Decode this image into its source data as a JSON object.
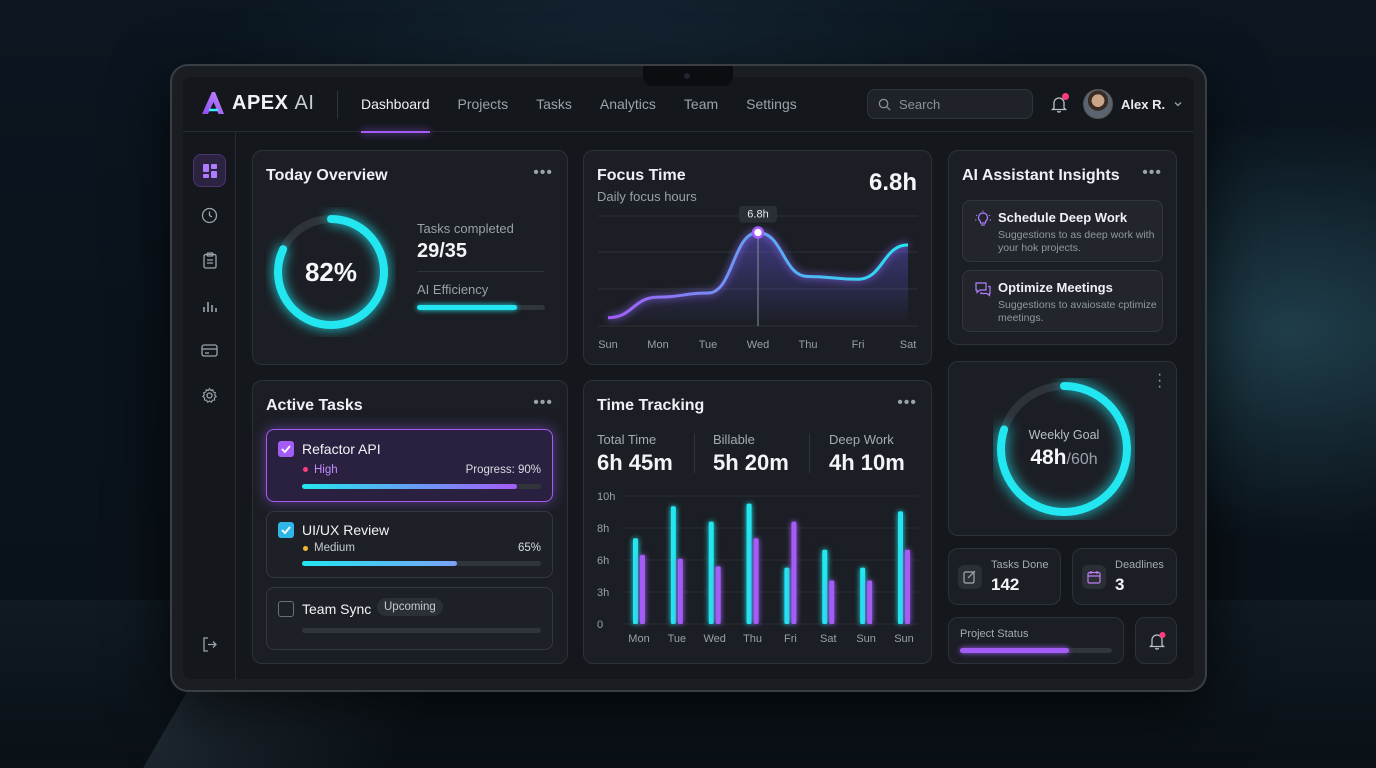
{
  "app": {
    "brand": "APEX",
    "brand_suffix": "AI"
  },
  "nav": {
    "items": [
      "Dashboard",
      "Projects",
      "Tasks",
      "Analytics",
      "Team",
      "Settings"
    ],
    "active": "Dashboard"
  },
  "search": {
    "placeholder": "Search"
  },
  "user": {
    "name": "Alex R."
  },
  "colors": {
    "accent_purple": "#a45cf7",
    "accent_cyan": "#22e6f0",
    "high": "#ff3d7a",
    "medium": "#f5b731"
  },
  "today_overview": {
    "title": "Today Overview",
    "percent_label": "82%",
    "percent": 0.82,
    "tasks_completed_label": "Tasks completed",
    "tasks_completed_value": "29/35",
    "ai_efficiency_label": "AI Efficiency",
    "ai_efficiency": 0.78
  },
  "focus_time": {
    "title": "Focus Time",
    "subtitle": "Daily focus hours",
    "total": "6.8h",
    "tooltip": "6.8h",
    "chart_data": {
      "type": "area",
      "categories": [
        "Sun",
        "Mon",
        "Tue",
        "Wed",
        "Thu",
        "Fri",
        "Sat"
      ],
      "values": [
        0.6,
        2.1,
        2.4,
        6.8,
        3.6,
        3.4,
        5.9
      ],
      "ylim": [
        0,
        8
      ],
      "highlight_index": 3
    }
  },
  "ai_insights": {
    "title": "AI Assistant Insights",
    "items": [
      {
        "title": "Schedule Deep Work",
        "desc": "Suggestions to as deep work with your hok projects.",
        "icon": "lightbulb-icon"
      },
      {
        "title": "Optimize Meetings",
        "desc": "Suggestions to avaiosate cptimize meetings.",
        "icon": "chat-icon"
      }
    ]
  },
  "active_tasks": {
    "title": "Active Tasks",
    "items": [
      {
        "name": "Refactor API",
        "priority": "High",
        "progress_label": "Progress: 90%",
        "progress": 0.9,
        "checked": true
      },
      {
        "name": "UI/UX Review",
        "priority": "Medium",
        "progress_label": "65%",
        "progress": 0.65,
        "checked": true
      },
      {
        "name": "Team Sync",
        "badge": "Upcoming",
        "progress": 0,
        "checked": false
      }
    ]
  },
  "time_tracking": {
    "title": "Time Tracking",
    "stats": [
      {
        "label": "Total Time",
        "value": "6h 45m"
      },
      {
        "label": "Billable",
        "value": "5h 20m"
      },
      {
        "label": "Deep Work",
        "value": "4h 10m"
      }
    ],
    "y_ticks": [
      "10h",
      "8h",
      "6h",
      "3h",
      "0"
    ],
    "chart_data": {
      "type": "bar",
      "categories": [
        "Mon",
        "Tue",
        "Wed",
        "Thu",
        "Fri",
        "Sat",
        "Sun",
        "Sun"
      ],
      "ylim": [
        0,
        10
      ],
      "series": [
        {
          "values": [
            6.7,
            9.2,
            8.0,
            9.4,
            4.4,
            5.8,
            4.4,
            8.8
          ]
        },
        {
          "values": [
            5.4,
            5.1,
            4.5,
            6.7,
            8.0,
            3.4,
            3.4,
            5.8
          ]
        }
      ]
    }
  },
  "weekly_goal": {
    "label": "Weekly Goal",
    "value": "48h",
    "target": "/60h",
    "progress": 0.8
  },
  "tasks_done": {
    "label": "Tasks Done",
    "value": "142"
  },
  "deadlines": {
    "label": "Deadlines",
    "value": "3"
  },
  "project_status": {
    "label": "Project Status",
    "progress": 0.72
  }
}
